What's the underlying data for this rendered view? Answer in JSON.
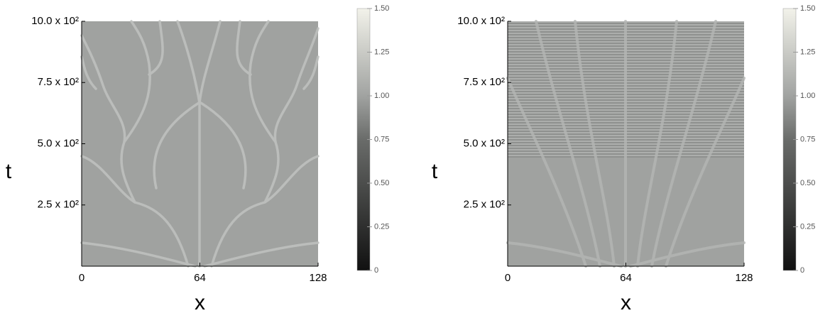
{
  "chart_data": [
    {
      "type": "heatmap",
      "xlabel": "x",
      "ylabel": "t",
      "xlim": [
        0,
        128
      ],
      "xticks": [
        0,
        64,
        128
      ],
      "ylim": [
        0,
        1000
      ],
      "yticks": [
        {
          "value": 250,
          "label": "2.5 x 10²"
        },
        {
          "value": 500,
          "label": "5.0 x 10²"
        },
        {
          "value": 750,
          "label": "7.5 x 10²"
        },
        {
          "value": 1000,
          "label": "10.0 x 10²"
        }
      ],
      "clim": [
        0,
        1.5
      ],
      "cticks": [
        0,
        0.25,
        {
          "value": 0.5,
          "label": "0.50"
        },
        0.75,
        {
          "value": 1,
          "label": "1.00"
        },
        1.25,
        {
          "value": 1.5,
          "label": "1.50"
        }
      ]
    },
    {
      "type": "heatmap",
      "xlabel": "x",
      "ylabel": "t",
      "xlim": [
        0,
        128
      ],
      "xticks": [
        0,
        64,
        128
      ],
      "ylim": [
        0,
        1000
      ],
      "yticks": [
        {
          "value": 250,
          "label": "2.5 x 10²"
        },
        {
          "value": 500,
          "label": "5.0 x 10²"
        },
        {
          "value": 750,
          "label": "7.5 x 10²"
        },
        {
          "value": 1000,
          "label": "10.0 x 10²"
        }
      ],
      "clim": [
        0,
        1.5
      ],
      "cticks": [
        0,
        0.25,
        {
          "value": 0.5,
          "label": "0.50"
        },
        0.75,
        {
          "value": 1,
          "label": "1.00"
        },
        1.25,
        {
          "value": 1.5,
          "label": "1.50"
        }
      ]
    }
  ]
}
